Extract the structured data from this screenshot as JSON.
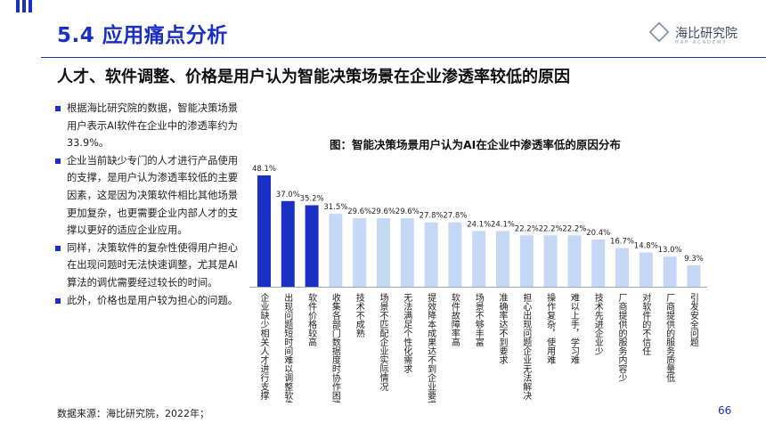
{
  "header": {
    "section_title": "5.4 应用痛点分析",
    "logo_text": "海比研究院",
    "logo_subtext": "HAP ACADEMY"
  },
  "subtitle": "人才、软件调整、价格是用户认为智能决策场景在企业渗透率较低的原因",
  "bullets": [
    "根据海比研究院的数据，智能决策场景用户表示AI软件在企业中的渗透率约为33.9%。",
    "企业当前缺少专门的人才进行产品使用的支撑，是用户认为渗透率较低的主要因素，这是因为决策软件相比其他场景更加复杂，也更需要企业内部人才的支撑以更好的适应企业应用。",
    "同样，决策软件的复杂性使得用户担心在出现问题时无法快速调整，尤其是AI算法的调优需要经过较长的时间。",
    "此外，价格也是用户较为担心的问题。"
  ],
  "chart_data": {
    "type": "bar",
    "title": "图：智能决策场景用户认为AI在企业中渗透率低的原因分布",
    "categories": [
      "企业缺少相关人才进行支撑",
      "出现问题短时间难以调整软件",
      "软件价格较高",
      "收集各部门数据度时协作困难",
      "技术不成熟",
      "场景不匹配企业实际情况",
      "无法满足个性化需求",
      "提效降本成果达不到企业要求",
      "软件故障率高",
      "场景不够丰富",
      "准确率达不到要求",
      "担心出现问题企业无法解决",
      "操作复杂，使用难",
      "难以上手，学习难",
      "技术先进企业少",
      "厂商提供的服务内容少",
      "对软件的不信任",
      "厂商提供的服务质量低",
      "引发安全问题"
    ],
    "values": [
      48.1,
      37.0,
      35.2,
      31.5,
      29.6,
      29.6,
      29.6,
      27.8,
      27.8,
      24.1,
      24.1,
      22.2,
      22.2,
      22.2,
      20.4,
      16.7,
      14.8,
      13.0,
      9.3
    ],
    "value_labels": [
      "48.1%",
      "37.0%",
      "35.2%",
      "31.5%",
      "29.6%",
      "29.6%",
      "29.6%",
      "27.8%",
      "27.8%",
      "24.1%",
      "24.1%",
      "22.2%",
      "22.2%",
      "22.2%",
      "20.4%",
      "16.7%",
      "14.8%",
      "13.0%",
      "9.3%"
    ],
    "highlight_count": 3,
    "colors": {
      "highlight": "#1a2fc4",
      "normal": "#c5d9f7",
      "baseline": "#9aa8c0"
    },
    "ylim": [
      0,
      50
    ]
  },
  "footer": {
    "source": "数据来源：海比研究院，2022年；",
    "page_number": "66"
  }
}
